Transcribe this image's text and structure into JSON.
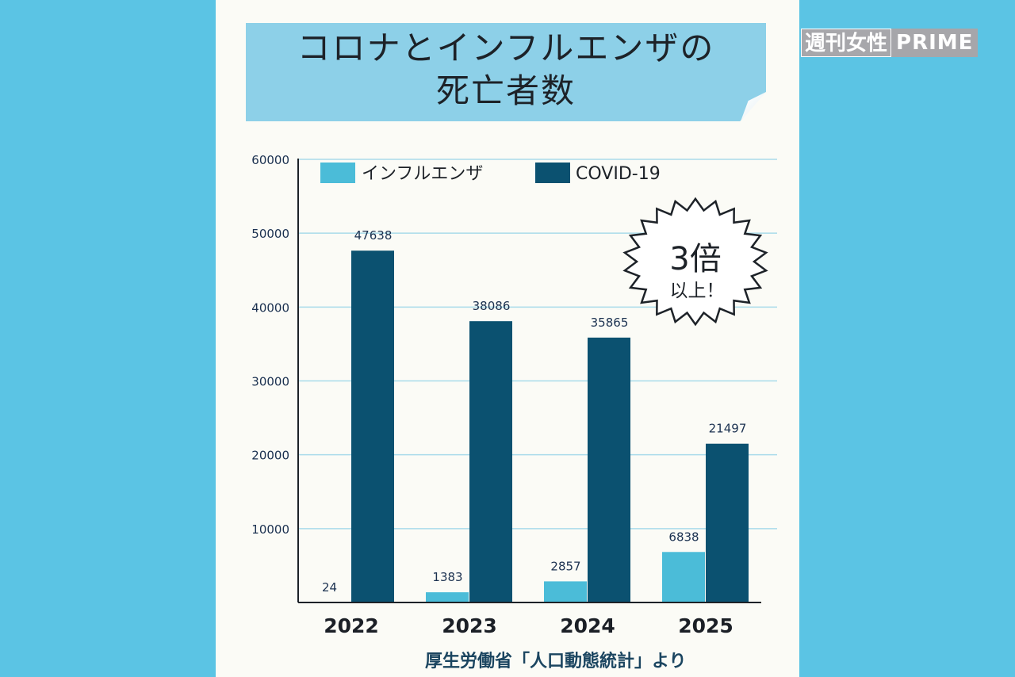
{
  "title": {
    "line1": "コロナとインフルエンザの",
    "line2": "死亡者数"
  },
  "brand": {
    "part1": "週刊女性",
    "part2": "PRIME"
  },
  "burst": {
    "main": "3倍",
    "sub": "以上！"
  },
  "source": "厚生労働省「人口動態統計」より",
  "colors": {
    "influenza": "#4bbcd8",
    "covid": "#0b5170",
    "background": "#5bc4e4",
    "card": "#fbfbf6",
    "grid": "#a9dbea"
  },
  "chart_data": {
    "type": "bar",
    "categories": [
      "2022",
      "2023",
      "2024",
      "2025"
    ],
    "series": [
      {
        "name": "インフルエンザ",
        "values": [
          24,
          1383,
          2857,
          6838
        ]
      },
      {
        "name": "COVID-19",
        "values": [
          47638,
          38086,
          35865,
          21497
        ]
      }
    ],
    "ylim": [
      0,
      60000
    ],
    "yticks": [
      "10000",
      "20000",
      "30000",
      "40000",
      "50000",
      "60000"
    ],
    "grid": true,
    "legend": "top"
  }
}
